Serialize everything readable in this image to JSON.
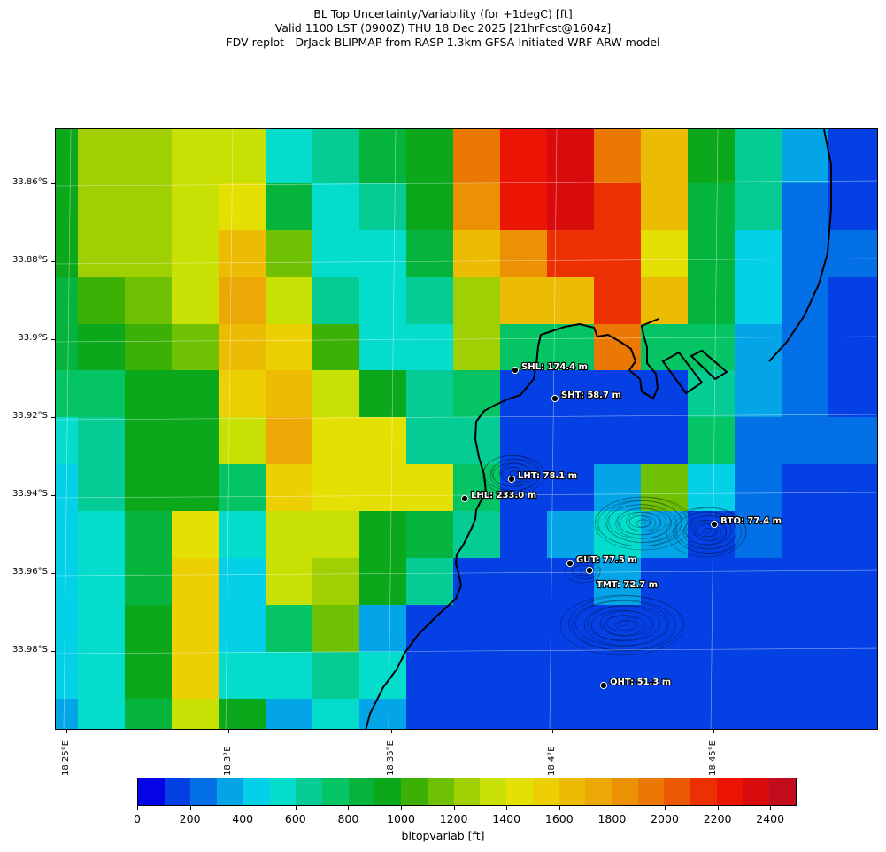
{
  "title": {
    "line1": "BL Top Uncertainty/Variability (for +1degC) [ft]",
    "line2": "Valid 1100 LST (0900Z) THU 18 Dec 2025 [21hrFcst@1604z]",
    "line3": "FDV replot - DrJack BLIPMAP from RASP 1.3km GFSA-Initiated WRF-ARW model"
  },
  "axes": {
    "y_labels": [
      "33.86°S",
      "33.88°S",
      "33.9°S",
      "33.92°S",
      "33.94°S",
      "33.96°S",
      "33.98°S"
    ],
    "x_labels": [
      "18.25°E",
      "18.3°E",
      "18.35°E",
      "18.4°E",
      "18.45°E"
    ]
  },
  "colorbar": {
    "label": "bltopvariab [ft]",
    "ticks": [
      "0",
      "200",
      "400",
      "600",
      "800",
      "1000",
      "1200",
      "1400",
      "1600",
      "1800",
      "2000",
      "2200",
      "2400"
    ],
    "vmax": 2500,
    "colors": [
      "#0404e4",
      "#0440e4",
      "#0470e8",
      "#04a4e8",
      "#04d0e8",
      "#04dccc",
      "#04cc94",
      "#04c464",
      "#04b43c",
      "#0ca81c",
      "#3cb004",
      "#70c004",
      "#a0d004",
      "#c8e004",
      "#e4e004",
      "#ecd004",
      "#ecbc04",
      "#eca804",
      "#ec9004",
      "#ec7804",
      "#ec5804",
      "#ec3004",
      "#ec1404",
      "#d80c0c",
      "#c00c1c"
    ]
  },
  "map": {
    "grid_values": [
      [
        900,
        1200,
        1200,
        1300,
        1300,
        500,
        600,
        800,
        900,
        1900,
        2200,
        2300,
        1900,
        1600,
        900,
        600,
        300,
        100
      ],
      [
        900,
        1200,
        1200,
        1300,
        1300,
        500,
        600,
        800,
        900,
        1900,
        2200,
        2300,
        1900,
        1600,
        900,
        600,
        300,
        100
      ],
      [
        900,
        1200,
        1200,
        1300,
        1400,
        800,
        500,
        600,
        900,
        1800,
        2200,
        2300,
        2100,
        1600,
        800,
        600,
        200,
        100
      ],
      [
        900,
        1200,
        1200,
        1300,
        1600,
        1100,
        500,
        500,
        800,
        1600,
        1800,
        2100,
        2100,
        1400,
        800,
        400,
        200,
        200
      ],
      [
        800,
        1000,
        1100,
        1300,
        1700,
        1300,
        600,
        500,
        600,
        1200,
        1600,
        1600,
        2100,
        1600,
        800,
        400,
        200,
        100
      ],
      [
        800,
        900,
        1000,
        1100,
        1600,
        1500,
        1000,
        500,
        500,
        1200,
        700,
        700,
        1900,
        700,
        700,
        300,
        200,
        100
      ],
      [
        700,
        700,
        900,
        900,
        1500,
        1600,
        1300,
        900,
        600,
        700,
        100,
        100,
        100,
        100,
        600,
        300,
        200,
        100
      ],
      [
        500,
        600,
        900,
        900,
        1300,
        1700,
        1400,
        1400,
        600,
        600,
        100,
        100,
        100,
        100,
        700,
        200,
        200,
        200
      ],
      [
        400,
        600,
        900,
        900,
        700,
        1500,
        1400,
        1400,
        1400,
        700,
        100,
        100,
        300,
        1100,
        400,
        200,
        100,
        100
      ],
      [
        400,
        500,
        800,
        1400,
        500,
        1300,
        1300,
        900,
        800,
        600,
        100,
        300,
        500,
        300,
        100,
        200,
        100,
        100
      ],
      [
        400,
        500,
        800,
        1500,
        400,
        1300,
        1200,
        900,
        600,
        100,
        100,
        100,
        300,
        100,
        100,
        100,
        100,
        100
      ],
      [
        400,
        500,
        900,
        1500,
        400,
        700,
        1100,
        300,
        100,
        100,
        100,
        100,
        100,
        100,
        100,
        100,
        100,
        100
      ],
      [
        400,
        500,
        900,
        1500,
        500,
        500,
        600,
        500,
        100,
        100,
        100,
        100,
        100,
        100,
        100,
        100,
        100,
        100
      ],
      [
        300,
        500,
        800,
        1300,
        900,
        300,
        500,
        300,
        100,
        100,
        100,
        100,
        100,
        100,
        100,
        100,
        100,
        100
      ],
      [
        200,
        300,
        600,
        1100,
        1300,
        300,
        300,
        100,
        100,
        100,
        100,
        100,
        100,
        100,
        100,
        100,
        100,
        100
      ]
    ],
    "stations": [
      {
        "name": "SHL: 174.4 m"
      },
      {
        "name": "SHT: 58.7 m"
      },
      {
        "name": "LHT: 78.1 m"
      },
      {
        "name": "LHL: 233.0 m"
      },
      {
        "name": "BTO: 77.4 m"
      },
      {
        "name": "GUT: 77.5 m"
      },
      {
        "name": "TMT: 72.7 m"
      },
      {
        "name": "OHT: 51.3 m"
      }
    ]
  }
}
